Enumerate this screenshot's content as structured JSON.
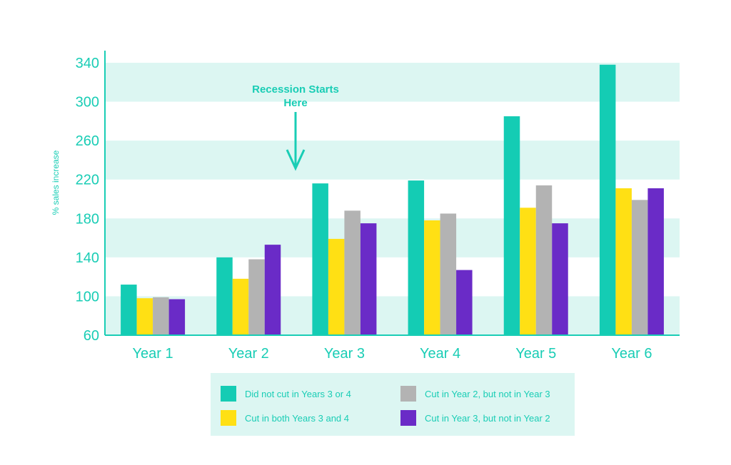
{
  "colors": {
    "accent": "#19cdb5",
    "band": "#dcf6f2",
    "series": [
      "#14ccb4",
      "#ffe014",
      "#b3b3b3",
      "#6a2bc7"
    ]
  },
  "annotation": {
    "line1": "Recession Starts",
    "line2": "Here",
    "category": "Year 3",
    "icon": "arrow-down-icon"
  },
  "chart_data": {
    "type": "bar",
    "title": "",
    "xlabel": "",
    "ylabel": "% sales increase",
    "ylim": [
      60,
      340
    ],
    "yticks": [
      60,
      100,
      140,
      180,
      220,
      260,
      300,
      340
    ],
    "grid": "alternating horizontal bands",
    "legend_position": "bottom",
    "categories": [
      "Year 1",
      "Year 2",
      "Year 3",
      "Year 4",
      "Year 5",
      "Year 6"
    ],
    "series": [
      {
        "name": "Did not cut in Years 3 or 4",
        "values": [
          112,
          140,
          216,
          219,
          285,
          338
        ]
      },
      {
        "name": "Cut in both Years 3 and 4",
        "values": [
          98,
          118,
          159,
          178,
          191,
          211
        ]
      },
      {
        "name": "Cut in Year 2, but not in Year 3",
        "values": [
          99,
          138,
          188,
          185,
          214,
          199
        ]
      },
      {
        "name": "Cut in Year 3, but not in Year 2",
        "values": [
          97,
          153,
          175,
          127,
          175,
          211
        ]
      }
    ]
  }
}
